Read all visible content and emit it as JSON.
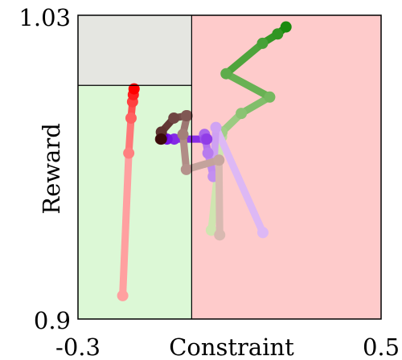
{
  "chart_data": {
    "type": "line",
    "title": "",
    "xlabel": "Constraint",
    "ylabel": "Reward",
    "xlim": [
      -0.3,
      0.5
    ],
    "ylim": [
      0.9,
      1.03
    ],
    "xticks": [
      -0.3,
      0.5
    ],
    "xtick_labels": [
      "-0.3",
      "0.5"
    ],
    "yticks": [
      0.9,
      1.03
    ],
    "ytick_labels": [
      "0.9",
      "1.03"
    ],
    "grid": false,
    "regions": [
      {
        "name": "feasible",
        "x": [
          -0.3,
          0.0
        ],
        "y": [
          0.9,
          1.0
        ],
        "color": "#dcf8d6"
      },
      {
        "name": "infeasible",
        "x": [
          0.0,
          0.5
        ],
        "y": [
          0.9,
          1.03
        ],
        "color": "#fecbcb"
      },
      {
        "name": "above-threshold",
        "x": [
          -0.3,
          0.0
        ],
        "y": [
          1.0,
          1.03
        ],
        "color": "#e5e6e1"
      }
    ],
    "series": [
      {
        "color": "#ffa0a0",
        "end_color": "#ff0000",
        "points": [
          [
            -0.182,
            0.91
          ],
          [
            -0.166,
            0.971
          ],
          [
            -0.16,
            0.986
          ],
          [
            -0.156,
            0.993
          ],
          [
            -0.154,
            0.996
          ],
          [
            -0.152,
            0.9985
          ]
        ]
      },
      {
        "color": "#cfe5b0",
        "end_color": "#1a8a0e",
        "points": [
          [
            0.052,
            0.938
          ],
          [
            0.079,
            0.978
          ],
          [
            0.08,
            0.98
          ],
          [
            0.131,
            0.988
          ],
          [
            0.206,
            0.995
          ],
          [
            0.091,
            1.005
          ],
          [
            0.187,
            1.018
          ],
          [
            0.227,
            1.022
          ],
          [
            0.249,
            1.025
          ]
        ]
      },
      {
        "color": "#ddb8f5",
        "end_color": "#6a00e0",
        "points": [
          [
            0.188,
            0.937
          ],
          [
            0.064,
            0.982
          ],
          [
            0.057,
            0.961
          ],
          [
            0.043,
            0.971
          ],
          [
            0.034,
            0.979
          ],
          [
            0.036,
            0.977
          ],
          [
            0.04,
            0.977
          ],
          [
            -0.046,
            0.977
          ],
          [
            -0.065,
            0.977
          ],
          [
            -0.077,
            0.978
          ]
        ]
      },
      {
        "color": "#d8b9b1",
        "end_color": "#3a0a0a",
        "points": [
          [
            0.074,
            0.936
          ],
          [
            0.072,
            0.968
          ],
          [
            -0.014,
            0.964
          ],
          [
            -0.023,
            0.979
          ],
          [
            -0.012,
            0.987
          ],
          [
            -0.014,
            0.987
          ],
          [
            -0.047,
            0.986
          ],
          [
            -0.08,
            0.98
          ],
          [
            -0.082,
            0.977
          ],
          [
            -0.08,
            0.977
          ]
        ]
      }
    ]
  }
}
